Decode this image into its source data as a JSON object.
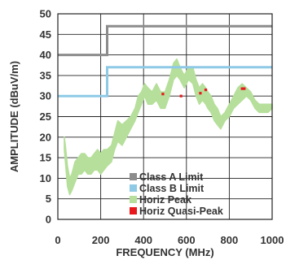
{
  "chart_data": {
    "type": "line",
    "xlabel": "FREQUENCY (MHz)",
    "ylabel": "AMPLITUDE (dBuV/m)",
    "xlim": [
      0,
      1000
    ],
    "ylim": [
      0,
      50
    ],
    "xticks": [
      "0",
      "200",
      "400",
      "600",
      "800",
      "1000"
    ],
    "yticks": [
      "0",
      "5",
      "10",
      "15",
      "20",
      "25",
      "30",
      "35",
      "40",
      "45",
      "50"
    ],
    "grid": true,
    "legend_position": "bottom-right",
    "colors": {
      "class_a": "#8c8c8c",
      "class_b": "#8ecae6",
      "horiz_peak": "#b5df9a",
      "quasi_peak": "#e8181c",
      "grid": "#222222"
    },
    "series": [
      {
        "name": "Class A Limit",
        "style": "step",
        "x": [
          0,
          230,
          230,
          1000
        ],
        "y": [
          40,
          40,
          47,
          47
        ]
      },
      {
        "name": "Class B Limit",
        "style": "step",
        "x": [
          0,
          230,
          230,
          1000
        ],
        "y": [
          30,
          30,
          37,
          37
        ]
      },
      {
        "name": "Horiz Peak",
        "style": "band",
        "x": [
          30,
          35,
          45,
          55,
          65,
          80,
          95,
          110,
          125,
          140,
          155,
          170,
          185,
          200,
          215,
          230,
          250,
          265,
          280,
          300,
          320,
          340,
          360,
          375,
          390,
          405,
          420,
          440,
          460,
          480,
          500,
          520,
          540,
          555,
          570,
          590,
          610,
          630,
          645,
          660,
          675,
          690,
          700,
          715,
          730,
          745,
          760,
          780,
          800,
          820,
          840,
          860,
          880,
          900,
          920,
          940,
          960,
          980,
          1000
        ],
        "y_low": [
          17,
          14,
          8,
          6,
          7,
          9,
          11,
          11,
          12,
          11,
          11,
          12,
          12,
          11,
          12,
          13,
          14,
          17,
          19,
          18,
          20,
          22,
          24,
          26,
          28,
          30,
          28,
          28,
          29,
          27,
          27,
          30,
          34,
          35,
          34,
          32,
          34,
          33,
          30,
          28,
          29,
          28,
          27,
          26,
          24,
          23,
          22,
          24,
          25,
          27,
          28,
          29,
          30,
          29,
          27,
          26,
          26,
          26,
          27
        ],
        "y_high": [
          20,
          18,
          13,
          10,
          11,
          14,
          15,
          16,
          16,
          15,
          15,
          16,
          17,
          16,
          17,
          17,
          18,
          21,
          24,
          23,
          24,
          25,
          27,
          30,
          31,
          33,
          32,
          31,
          33,
          31,
          31,
          34,
          38,
          39,
          37,
          35,
          37,
          37,
          34,
          32,
          33,
          32,
          31,
          30,
          28,
          27,
          25,
          26,
          28,
          30,
          32,
          33,
          32,
          31,
          29,
          28,
          28,
          28,
          28
        ]
      },
      {
        "name": "Horiz Quasi-Peak",
        "style": "points",
        "x": [
          490,
          575,
          665,
          690,
          860,
          870
        ],
        "y": [
          30.5,
          30,
          30.7,
          31.5,
          31.8,
          31.8
        ]
      }
    ]
  }
}
